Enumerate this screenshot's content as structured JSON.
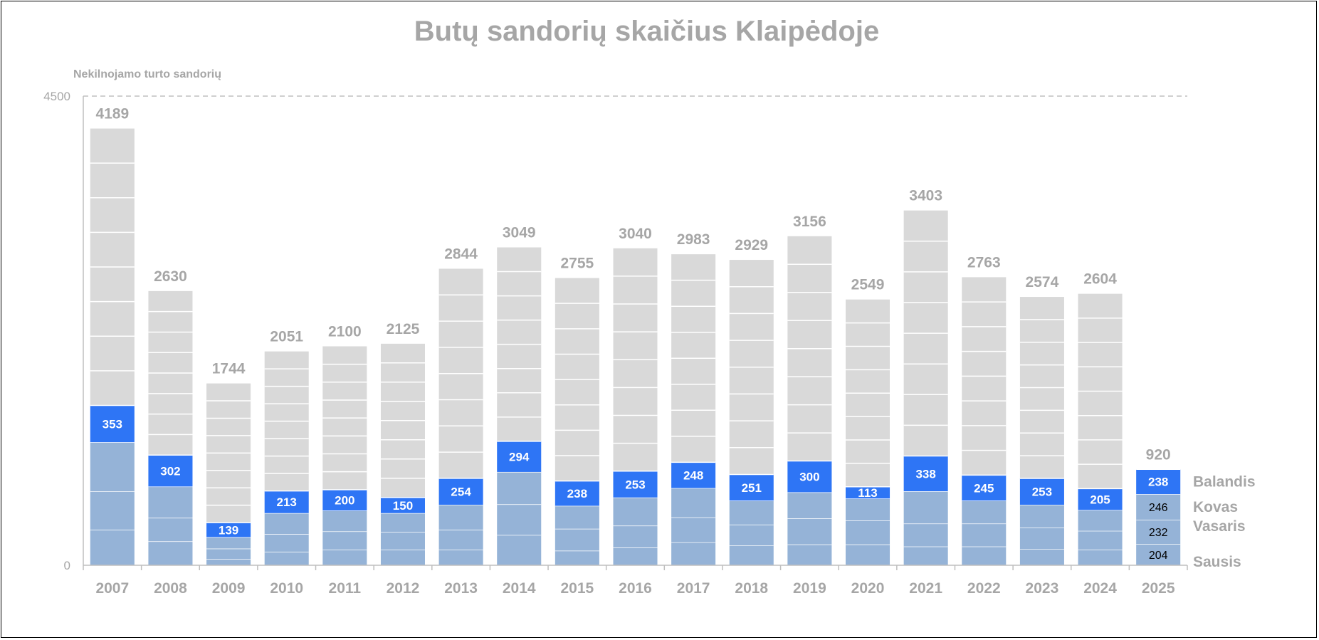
{
  "chart_data": {
    "type": "bar",
    "stacked": true,
    "title": "Butų sandorių skaičius Klaipėdoje",
    "ylabel": "Nekilnojamo turto sandorių",
    "ylim": [
      0,
      4500
    ],
    "yticks": [
      0,
      4500
    ],
    "grid": false,
    "categories": [
      "2007",
      "2008",
      "2009",
      "2010",
      "2011",
      "2012",
      "2013",
      "2014",
      "2015",
      "2016",
      "2017",
      "2018",
      "2019",
      "2020",
      "2021",
      "2022",
      "2023",
      "2024",
      "2025"
    ],
    "totals": [
      4189,
      2630,
      1744,
      2051,
      2100,
      2125,
      2844,
      3049,
      2755,
      3040,
      2983,
      2929,
      3156,
      2549,
      3403,
      2763,
      2574,
      2604,
      920
    ],
    "april": [
      353,
      302,
      139,
      213,
      200,
      150,
      254,
      294,
      238,
      253,
      248,
      251,
      300,
      113,
      338,
      245,
      253,
      205,
      238
    ],
    "jan_mar": [
      [
        340,
        370,
        470
      ],
      [
        230,
        225,
        300
      ],
      [
        60,
        100,
        110
      ],
      [
        130,
        170,
        200
      ],
      [
        150,
        175,
        200
      ],
      [
        150,
        170,
        180
      ],
      [
        150,
        190,
        240
      ],
      [
        290,
        295,
        310
      ],
      [
        140,
        210,
        220
      ],
      [
        170,
        210,
        270
      ],
      [
        220,
        240,
        280
      ],
      [
        190,
        200,
        230
      ],
      [
        200,
        250,
        250
      ],
      [
        200,
        230,
        210
      ],
      [
        180,
        220,
        310
      ],
      [
        180,
        220,
        220
      ],
      [
        155,
        205,
        220
      ],
      [
        150,
        180,
        200
      ],
      [
        204,
        232,
        246
      ]
    ],
    "segment_label_series": [
      "Sausis",
      "Vasaris",
      "Kovas"
    ],
    "series_labels": [
      "Sausis",
      "Vasaris",
      "Kovas",
      "Balandis"
    ],
    "colors": {
      "months_jan_mar": "#95b3d7",
      "april": "#2e75f5",
      "rest_of_year": "#d9d9d9",
      "segment_lines": "#ffffff",
      "text": "#a6a6a6",
      "axis": "#bfbfbf"
    }
  }
}
